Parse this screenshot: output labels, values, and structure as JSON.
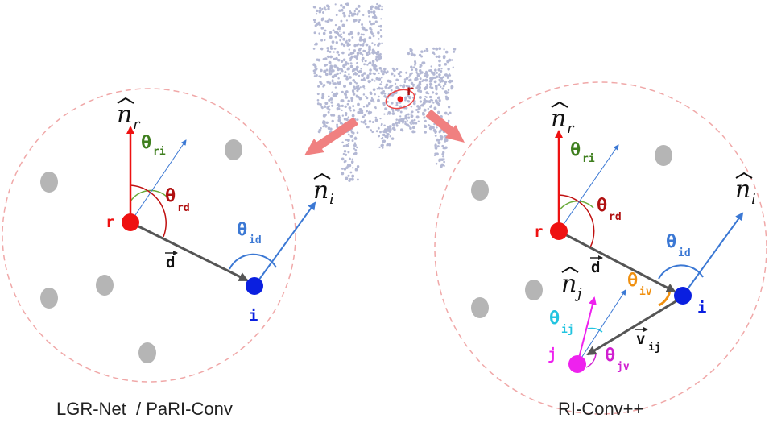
{
  "captions": {
    "left": "LGR-Net  / PaRI-Conv",
    "right": "RI-Conv++"
  },
  "cloud": {
    "ref_label": "r"
  },
  "left_panel": {
    "n_r": "n",
    "n_r_sub": "r",
    "theta_ri": "θ",
    "theta_ri_sub": "ri",
    "theta_rd": "θ",
    "theta_rd_sub": "rd",
    "theta_id": "θ",
    "theta_id_sub": "id",
    "n_i": "n",
    "n_i_sub": "i",
    "d_vec": "d",
    "r_label": "r",
    "i_label": "i"
  },
  "right_panel": {
    "n_r": "n",
    "n_r_sub": "r",
    "theta_ri": "θ",
    "theta_ri_sub": "ri",
    "theta_rd": "θ",
    "theta_rd_sub": "rd",
    "theta_id": "θ",
    "theta_id_sub": "id",
    "n_i": "n",
    "n_i_sub": "i",
    "d_vec": "d",
    "r_label": "r",
    "i_label": "i",
    "n_j": "n",
    "n_j_sub": "j",
    "theta_iv": "θ",
    "theta_iv_sub": "iv",
    "theta_ij": "θ",
    "theta_ij_sub": "ij",
    "v_vec": "v",
    "v_vec_sub": "ij",
    "theta_jv": "θ",
    "theta_jv_sub": "jv",
    "j_label": "j"
  },
  "colors": {
    "ref_point": "#ee1111",
    "query_point": "#0a1fe0",
    "neighbor_point": "#ee22ee",
    "normal_blue": "#3b78d4",
    "theta_ri": "#3f7f1f",
    "theta_rd": "#b01010",
    "theta_iv": "#f09010",
    "theta_ij": "#22c4e0",
    "theta_jv": "#d020d0",
    "circle_dash": "#f0a8a8",
    "gray_point": "#b5b5b5",
    "cloud_points": "#b3b8d4",
    "big_arrow": "#f08080"
  }
}
